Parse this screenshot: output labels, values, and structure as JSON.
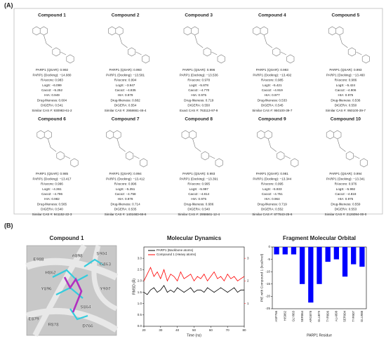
{
  "label_a": "(A)",
  "label_b": "(B)",
  "compounds": [
    {
      "name": "Compound 1",
      "properties": [
        "PARP1 (QSAR): 0.992",
        "PARP1 (Docking): −14.080",
        "RAscore: 0.983",
        "LogS: −6.099",
        "Caco2: −5.252",
        "HIA: 0.949",
        "Drug-likeness: 0.604",
        "DIGERA: 0.541",
        "Similar CAS #: 930983-61-2"
      ]
    },
    {
      "name": "Compound 2",
      "properties": [
        "PARP1 (QSAR): 0.993",
        "PARP1 (Docking): −13.581",
        "RAscore: 0.994",
        "LogS: −3.947",
        "Caco2: −4.835",
        "HIA: 0.979",
        "Drug-likeness: 0.682",
        "DIGERA: 0.554",
        "Similar CAS #: 2958661-46-4"
      ]
    },
    {
      "name": "Compound 3",
      "properties": [
        "PARP1 (QSAR): 0.996",
        "PARP1 (Docking): −13.536",
        "RAscore: 0.978",
        "LogS: −5.878",
        "Caco2: −4.770",
        "HIA: 0.975",
        "Drug-likeness: 0.719",
        "DIGERA: 0.550",
        "Exact CAS #: 763113-97-9"
      ]
    },
    {
      "name": "Compound 4",
      "properties": [
        "PARP1 (QSAR): 0.993",
        "PARP1 (Docking): −13.492",
        "RAscore: 0.985",
        "LogS: −5.421",
        "Caco2: −4.919",
        "HIA: 0.977",
        "Drug-likeness: 0.533",
        "DIGERA: 0.545",
        "Similar CAS #: 950100-39-7"
      ]
    },
    {
      "name": "Compound 5",
      "properties": [
        "PARP1 (QSAR): 0.993",
        "PARP1 (Docking): −13.460",
        "RAscore: 0.986",
        "LogS: −5.424",
        "Caco2: −4.906",
        "HIA: 0.975",
        "Drug-likeness: 0.536",
        "DIGERA: 0.550",
        "Similar CAS #: 950100-39-7"
      ]
    },
    {
      "name": "Compound 6",
      "properties": [
        "PARP1 (QSAR): 0.985",
        "PARP1 (Docking): −13.417",
        "RAscore: 0.996",
        "LogS: −4.361",
        "Caco2: −4.796",
        "HIA: 0.982",
        "Drug-likeness: 0.565",
        "DIGERA: 0.540",
        "Similar CAS #: 941152-22-3"
      ]
    },
    {
      "name": "Compound 7",
      "properties": [
        "PARP1 (QSAR): 0.994",
        "PARP1 (Docking): −13.412",
        "RAscore: 0.996",
        "LogS: −5.351",
        "Caco2: −4.758",
        "HIA: 0.978",
        "Drug-likeness: 0.714",
        "DIGERA: 0.535",
        "Similar CAS #: 1401683-66-6"
      ]
    },
    {
      "name": "Compound 8",
      "properties": [
        "PARP1 (QSAR): 0.993",
        "PARP1 (Docking): −13.391",
        "RAscore: 0.995",
        "LogS: −5.997",
        "Caco2: −4.814",
        "HIA: 0.975",
        "Drug-likeness: 0.686",
        "DIGERA: 0.540",
        "Similar CAS #: 2958661-12-4"
      ]
    },
    {
      "name": "Compound 9",
      "properties": [
        "PARP1 (QSAR): 0.981",
        "PARP1 (Docking): −13.344",
        "RAscore: 0.995",
        "LogS: −5.933",
        "Caco2: −4.751",
        "HIA: 0.964",
        "Drug-likeness: 0.719",
        "DIGERA: 0.552",
        "Similar CAS #: 877843-25-6"
      ]
    },
    {
      "name": "Compound 10",
      "properties": [
        "PARP1 (QSAR): 0.994",
        "PARP1 (Docking): −13.341",
        "RAscore: 0.976",
        "LogS: −5.992",
        "Caco2: −4.818",
        "HIA: 0.975",
        "Drug-likeness: 0.559",
        "DIGERA: 0.553",
        "Similar CAS #: 2126094-00-0"
      ]
    }
  ],
  "structure_panel": {
    "title": "Compound 1",
    "residues": [
      "E988",
      "A898",
      "S904",
      "H862",
      "G863",
      "Y896",
      "Y907",
      "S864",
      "E879",
      "R878",
      "D766"
    ]
  },
  "chart_data": [
    {
      "type": "line",
      "title": "Molecular Dynamics",
      "xlabel": "Time (ns)",
      "ylabel": "RMSD (Å)",
      "x": [
        20,
        22,
        24,
        26,
        28,
        30,
        32,
        34,
        36,
        38,
        40,
        42,
        44,
        46,
        48,
        50,
        52,
        54,
        56,
        58,
        60,
        62,
        64,
        66,
        68,
        70,
        72,
        74,
        76,
        78,
        80
      ],
      "series": [
        {
          "name": "PARP1 (Backbone atoms)",
          "color": "#000000",
          "values": [
            1.5,
            1.4,
            1.6,
            1.7,
            1.5,
            1.6,
            1.8,
            1.5,
            1.6,
            1.5,
            1.7,
            1.6,
            1.5,
            1.6,
            1.7,
            1.5,
            1.6,
            1.6,
            1.5,
            1.7,
            1.6,
            1.5,
            1.6,
            1.7,
            1.6,
            1.5,
            1.6,
            1.7,
            1.5,
            1.6,
            1.6
          ]
        },
        {
          "name": "Compound 1 (Heavy atoms)",
          "color": "#ff0000",
          "axis": "y2",
          "values": [
            2.0,
            2.3,
            2.6,
            2.2,
            2.4,
            2.1,
            2.5,
            2.0,
            2.3,
            2.2,
            2.0,
            2.4,
            2.1,
            2.2,
            2.3,
            2.0,
            2.2,
            2.1,
            2.3,
            2.0,
            2.2,
            2.4,
            2.1,
            2.2,
            2.0,
            2.3,
            2.1,
            2.2,
            2.0,
            2.1,
            2.2
          ]
        }
      ],
      "xlim": [
        20,
        80
      ],
      "xticks": [
        20,
        30,
        40,
        50,
        60,
        70,
        80
      ],
      "ylim": [
        0,
        3.5
      ],
      "yticks": [
        {
          "value": 0,
          "label": "0.0"
        },
        {
          "value": 0.5,
          "label": "0.5"
        },
        {
          "value": 1,
          "label": "1.0"
        },
        {
          "value": 1.5,
          "label": "1.5"
        },
        {
          "value": 2,
          "label": "2.0"
        },
        {
          "value": 2.5,
          "label": "2.5"
        },
        {
          "value": 3,
          "label": "3.0"
        }
      ],
      "y2lim": [
        0,
        3.5
      ],
      "y2ticks": [
        1,
        2,
        3
      ],
      "y2color": "#ff0000",
      "legend": "upper left"
    },
    {
      "type": "bar",
      "title": "Fragment Molecular Orbital",
      "xlabel": "PARP1 Residue",
      "ylabel": "PIE with Compound 1 (kcal/mol)",
      "categories": [
        "ASP766",
        "HIS862",
        "GLY863",
        "SER864",
        "ARG878",
        "GLU879",
        "TYR896",
        "ALA898",
        "SER904",
        "TYR907",
        "GLU988"
      ],
      "values": [
        -3,
        -3,
        -3,
        -15,
        -22.5,
        -15,
        -6,
        -5,
        -12,
        -7,
        -8
      ],
      "color": "#0000ff",
      "ylim": [
        -25,
        0
      ],
      "yticks": [
        0,
        -5,
        -10,
        -15,
        -20,
        -25
      ]
    }
  ]
}
